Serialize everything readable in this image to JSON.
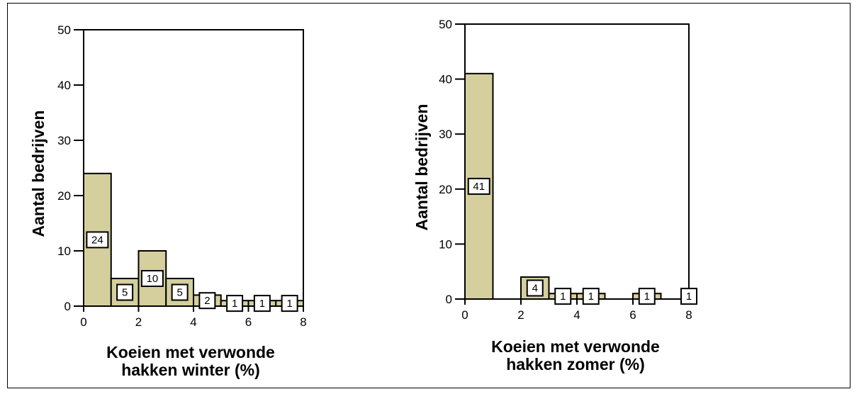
{
  "colors": {
    "bar_fill": "#d4cf9d",
    "bar_stroke": "#000000",
    "frame": "#000000",
    "background": "#ffffff"
  },
  "chart_data": [
    {
      "type": "bar",
      "xlabel": [
        "Koeien met verwonde",
        "hakken winter (%)"
      ],
      "ylabel": "Aantal bedrijven",
      "xlim": [
        0,
        8
      ],
      "ylim": [
        0,
        50
      ],
      "xticks": [
        "0",
        "2",
        "4",
        "6",
        "8"
      ],
      "yticks": [
        "0",
        "10",
        "20",
        "30",
        "40",
        "50"
      ],
      "grid": false,
      "bins": [
        {
          "x0": 0,
          "x1": 1,
          "value": 24,
          "label": "24"
        },
        {
          "x0": 1,
          "x1": 2,
          "value": 5,
          "label": "5"
        },
        {
          "x0": 2,
          "x1": 3,
          "value": 10,
          "label": "10"
        },
        {
          "x0": 3,
          "x1": 4,
          "value": 5,
          "label": "5"
        },
        {
          "x0": 4,
          "x1": 5,
          "value": 2,
          "label": "2"
        },
        {
          "x0": 5,
          "x1": 6,
          "value": 1,
          "label": "1"
        },
        {
          "x0": 6,
          "x1": 7,
          "value": 1,
          "label": "1"
        },
        {
          "x0": 7,
          "x1": 8,
          "value": 1,
          "label": "1"
        }
      ]
    },
    {
      "type": "bar",
      "xlabel": [
        "Koeien met verwonde",
        "hakken zomer (%)"
      ],
      "ylabel": "Aantal bedrijven",
      "xlim": [
        0,
        8
      ],
      "ylim": [
        0,
        50
      ],
      "xticks": [
        "0",
        "2",
        "4",
        "6",
        "8"
      ],
      "yticks": [
        "0",
        "10",
        "20",
        "30",
        "40",
        "50"
      ],
      "grid": false,
      "bins": [
        {
          "x0": 0,
          "x1": 1,
          "value": 41,
          "label": "41"
        },
        {
          "x0": 2,
          "x1": 3,
          "value": 4,
          "label": "4"
        },
        {
          "x0": 3,
          "x1": 4,
          "value": 1,
          "label": "1"
        },
        {
          "x0": 4,
          "x1": 5,
          "value": 1,
          "label": "1"
        },
        {
          "x0": 6,
          "x1": 7,
          "value": 1,
          "label": "1"
        },
        {
          "x0": 8,
          "x1": 8,
          "value": 1,
          "label": "1"
        }
      ]
    }
  ]
}
